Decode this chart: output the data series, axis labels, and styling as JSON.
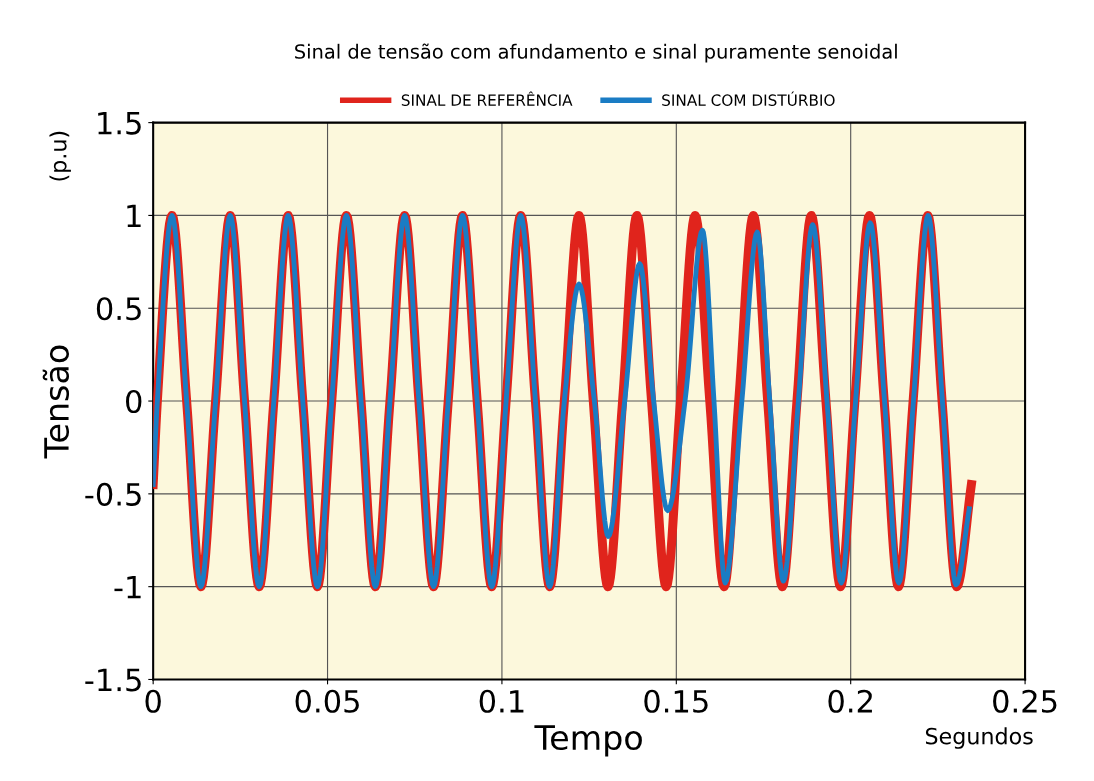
{
  "chart_data": {
    "type": "line",
    "title": "Sinal de tensão com afundamento e sinal puramente senoidal",
    "xlabel": "Tempo",
    "ylabel": "Tensão",
    "annotations": [
      "(p.u)",
      "Segundos"
    ],
    "xlim": [
      0,
      0.25
    ],
    "xticks": [
      0,
      0.05,
      0.1,
      0.15,
      0.2,
      0.25
    ],
    "ylim": [
      -1.5,
      1.5
    ],
    "yticks": [
      -1.5,
      -1,
      -0.5,
      0,
      0.5,
      1,
      1.5
    ],
    "grid": true,
    "legend": "top",
    "line_style": "solid",
    "marker": "none",
    "series": [
      {
        "name": "SINAL DE REFERÊNCIA",
        "color": "#e0241c",
        "x": [
          0,
          0.0012,
          0.0054,
          0.0096,
          0.0137,
          0.0179,
          0.0221,
          0.0262,
          0.0304,
          0.0346,
          0.0387,
          0.0429,
          0.0471,
          0.0512,
          0.0554,
          0.0596,
          0.0637,
          0.0679,
          0.0721,
          0.0762,
          0.0804,
          0.0846,
          0.0887,
          0.0929,
          0.0971,
          0.1012,
          0.1054,
          0.1096,
          0.1137,
          0.1179,
          0.1221,
          0.1262,
          0.1304,
          0.1346,
          0.1387,
          0.1429,
          0.1471,
          0.1512,
          0.1554,
          0.1596,
          0.1637,
          0.1679,
          0.1721,
          0.1762,
          0.1804,
          0.1846,
          0.1887,
          0.1929,
          0.1971,
          0.2012,
          0.2054,
          0.2096,
          0.2137,
          0.2179,
          0.2221,
          0.2262,
          0.2304,
          0.2346
        ],
        "values": [
          -0.45,
          0,
          1,
          0,
          -1,
          0,
          1,
          0,
          -1,
          0,
          1,
          0,
          -1,
          0,
          1,
          0,
          -1,
          0,
          1,
          0,
          -1,
          0,
          1,
          0,
          -1,
          0,
          1,
          0,
          -1,
          0,
          1,
          0,
          -1,
          0,
          1,
          0,
          -1,
          0,
          1,
          0,
          -1,
          0,
          1,
          0,
          -1,
          0,
          1,
          0,
          -1,
          0,
          1,
          0,
          -1,
          0,
          1,
          0,
          -1,
          -0.45
        ]
      },
      {
        "name": "SINAL COM DISTÚRBIO",
        "color": "#1a7cc4",
        "x": [
          0,
          0.0012,
          0.0054,
          0.0096,
          0.0137,
          0.0179,
          0.0221,
          0.0262,
          0.0304,
          0.0346,
          0.0387,
          0.0429,
          0.0471,
          0.0512,
          0.0554,
          0.0596,
          0.0637,
          0.0679,
          0.0721,
          0.0762,
          0.0804,
          0.0846,
          0.0887,
          0.0929,
          0.0971,
          0.1012,
          0.1054,
          0.1096,
          0.1137,
          0.1179,
          0.1221,
          0.1265,
          0.1305,
          0.1352,
          0.1395,
          0.1435,
          0.1475,
          0.1525,
          0.1575,
          0.1608,
          0.164,
          0.1688,
          0.1732,
          0.1768,
          0.1807,
          0.185,
          0.1891,
          0.1932,
          0.1973,
          0.2014,
          0.2056,
          0.2097,
          0.2138,
          0.218,
          0.2222,
          0.2263,
          0.2302,
          0.234
        ],
        "values": [
          -0.45,
          0,
          1,
          0,
          -1,
          0,
          1,
          0,
          -1,
          0,
          1,
          0,
          -1,
          0,
          1,
          0,
          -1,
          0,
          1,
          0,
          -1,
          0,
          1,
          0,
          -1,
          0,
          1,
          0,
          -1,
          0,
          0.63,
          0,
          -0.73,
          0,
          0.74,
          0,
          -0.59,
          0,
          0.92,
          0,
          -0.98,
          0,
          0.91,
          0,
          -0.97,
          0,
          0.95,
          0,
          -0.98,
          0,
          0.96,
          0,
          -0.98,
          0,
          1,
          0,
          -0.99,
          -0.58
        ]
      }
    ]
  }
}
